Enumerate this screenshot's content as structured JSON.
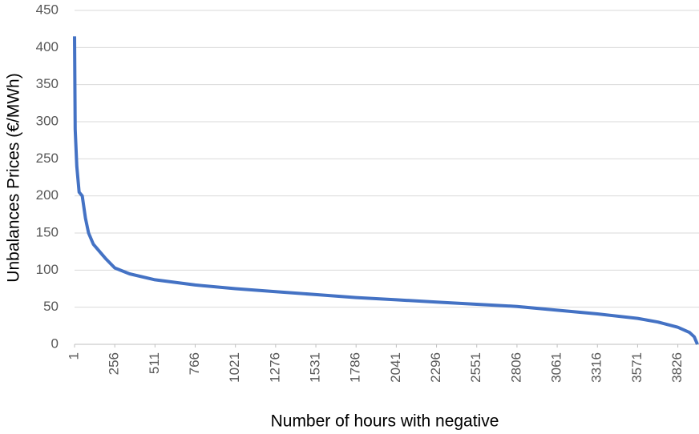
{
  "chart_data": {
    "type": "line",
    "x_label": "Number of hours with negative",
    "y_label": "Unbalances Prices (€/MWh)",
    "series": [
      {
        "name": "Unbalances Prices",
        "color": "#4472c4",
        "x": [
          1,
          5,
          15,
          30,
          50,
          70,
          90,
          120,
          160,
          200,
          256,
          350,
          511,
          766,
          1021,
          1276,
          1531,
          1786,
          2041,
          2296,
          2551,
          2806,
          3061,
          3316,
          3571,
          3700,
          3826,
          3900,
          3930,
          3950
        ],
        "values": [
          415,
          290,
          240,
          205,
          200,
          170,
          150,
          135,
          125,
          115,
          103,
          95,
          87,
          80,
          75,
          71,
          67,
          63,
          60,
          57,
          54,
          51,
          46,
          41,
          35,
          30,
          23,
          16,
          10,
          0
        ]
      }
    ],
    "xlim": [
      1,
      3950
    ],
    "xticks": [
      1,
      256,
      511,
      766,
      1021,
      1276,
      1531,
      1786,
      2041,
      2296,
      2551,
      2806,
      3061,
      3316,
      3571,
      3826
    ],
    "ylim": [
      0,
      450
    ],
    "yticks": [
      0,
      50,
      100,
      150,
      200,
      250,
      300,
      350,
      400,
      450
    ],
    "grid": true
  }
}
